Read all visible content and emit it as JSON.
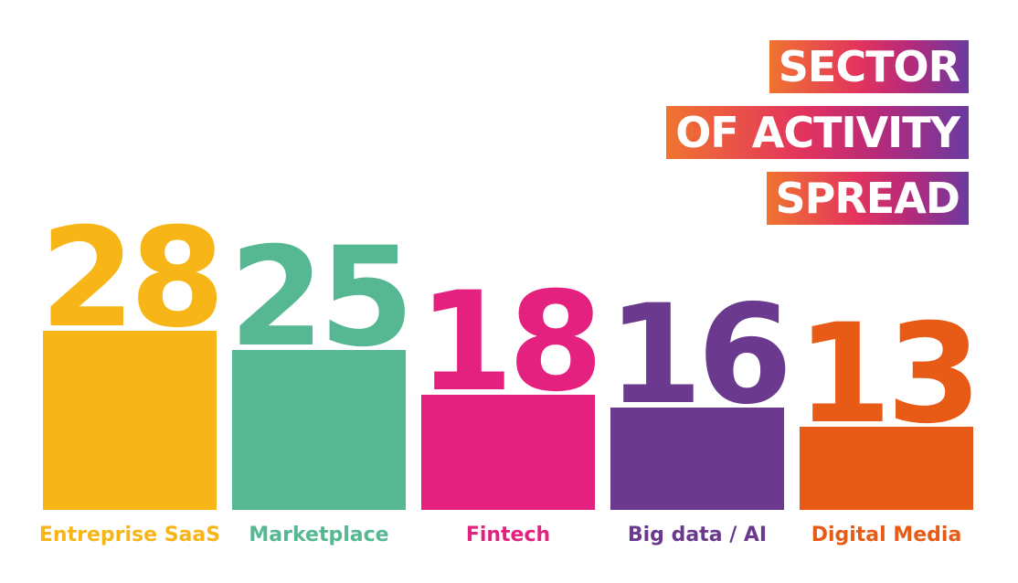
{
  "chart_data": {
    "type": "bar",
    "title_lines": [
      "SECTOR",
      "OF ACTIVITY",
      "SPREAD"
    ],
    "categories": [
      "Entreprise SaaS",
      "Marketplace",
      "Fintech",
      "Big data / AI",
      "Digital Media"
    ],
    "values": [
      28,
      25,
      18,
      16,
      13
    ],
    "colors": [
      "#f7b518",
      "#56b893",
      "#e5217f",
      "#6b3a8f",
      "#e85b17"
    ],
    "title_gradient": [
      "#f0742f",
      "#e3335e",
      "#b62a7a",
      "#6b3aa0"
    ],
    "grid": false,
    "legend": "none"
  }
}
